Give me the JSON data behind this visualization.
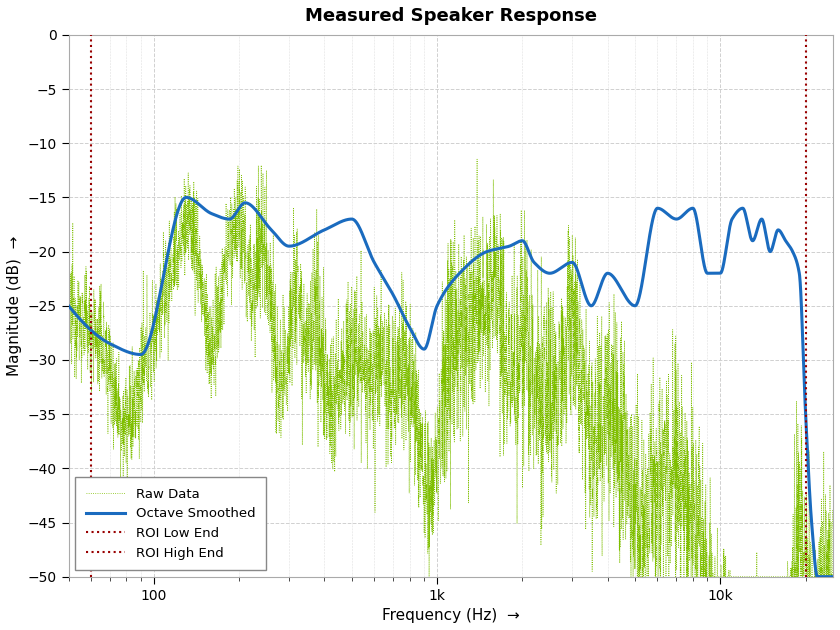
{
  "title": "Measured Speaker Response",
  "xlabel": "Frequency (Hz)  →",
  "ylabel": "Magnitude (dB)  →",
  "xlim": [
    50,
    25000
  ],
  "ylim": [
    -50,
    0
  ],
  "yticks": [
    0,
    -5,
    -10,
    -15,
    -20,
    -25,
    -30,
    -35,
    -40,
    -45,
    -50
  ],
  "roi_low": 60,
  "roi_high": 20000,
  "raw_color": "#7fbf00",
  "smooth_color": "#1a6bbf",
  "roi_color": "#990000",
  "raw_linewidth": 0.6,
  "smooth_linewidth": 2.2,
  "roi_linewidth": 1.5,
  "legend_loc": "lower left",
  "background_color": "#f2f2f2",
  "grid_color": "#ffffff",
  "title_fontsize": 13,
  "label_fontsize": 11
}
